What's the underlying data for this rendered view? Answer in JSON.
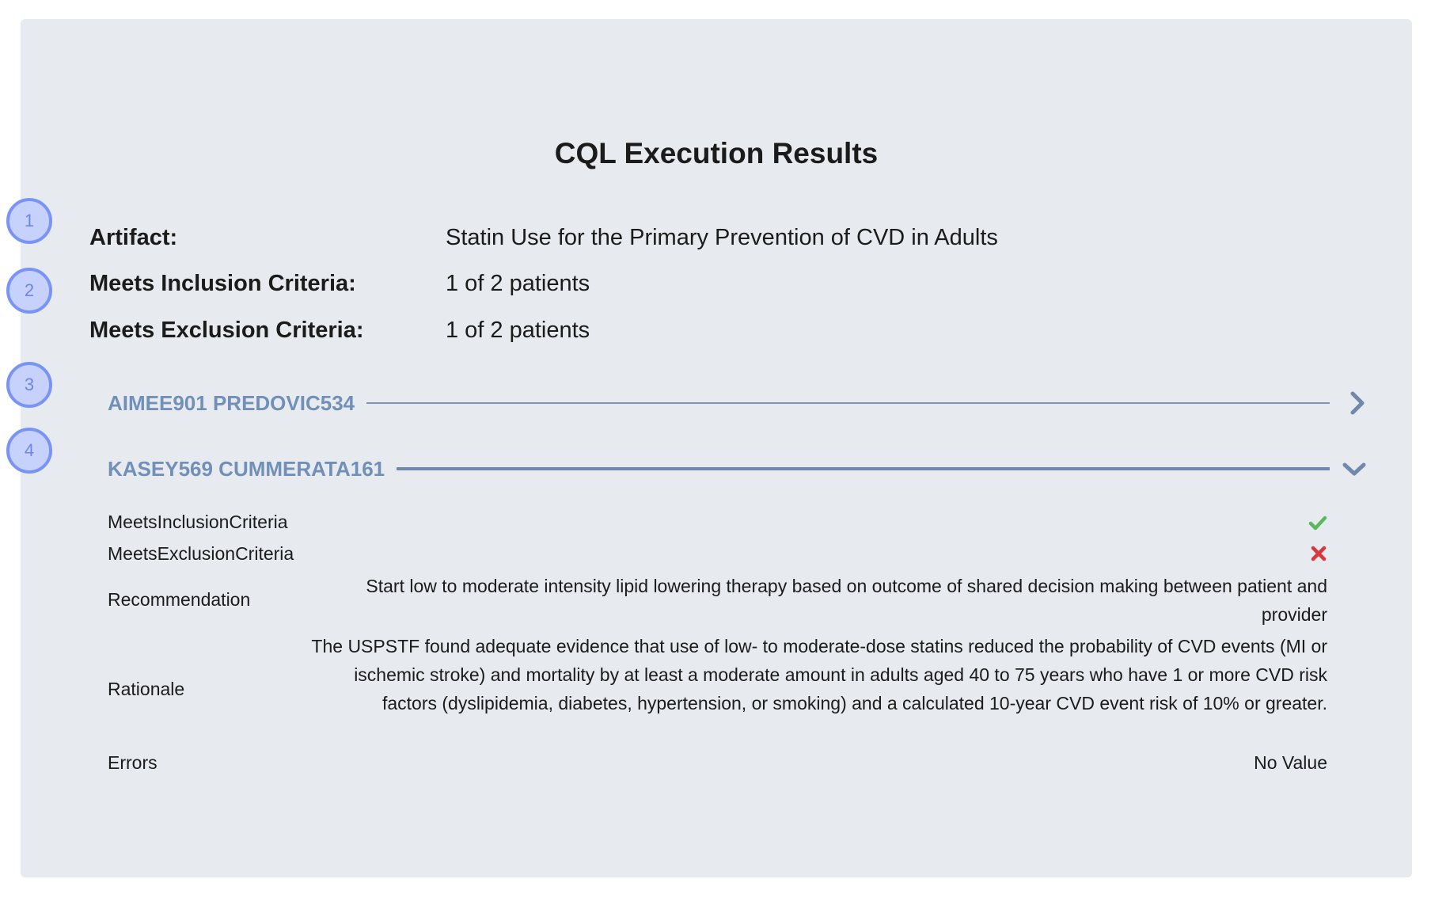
{
  "title": "CQL Execution Results",
  "summary": {
    "artifact_label": "Artifact:",
    "artifact_value": "Statin Use for the Primary Prevention of CVD in Adults",
    "inclusion_label": "Meets Inclusion Criteria:",
    "inclusion_value": "1 of 2 patients",
    "exclusion_label": "Meets Exclusion Criteria:",
    "exclusion_value": "1 of 2 patients"
  },
  "markers": [
    "1",
    "2",
    "3",
    "4"
  ],
  "patients": [
    {
      "name": "AIMEE901 PREDOVIC534",
      "expanded": false,
      "icon": "chevron-right-icon"
    },
    {
      "name": "KASEY569 CUMMERATA161",
      "expanded": true,
      "icon": "chevron-down-icon"
    }
  ],
  "details": {
    "inclusion_label": "MeetsInclusionCriteria",
    "inclusion_icon": "check-icon",
    "exclusion_label": "MeetsExclusionCriteria",
    "exclusion_icon": "cross-icon",
    "recommendation_label": "Recommendation",
    "recommendation_value": "Start low to moderate intensity lipid lowering therapy based on outcome of shared decision making between patient and provider",
    "rationale_label": "Rationale",
    "rationale_value": "The USPSTF found adequate evidence that use of low- to moderate-dose statins reduced the probability of CVD events (MI or ischemic stroke) and mortality by at least a moderate amount in adults aged 40 to 75 years who have 1 or more CVD risk factors (dyslipidemia, diabetes, hypertension, or smoking) and a calculated 10-year CVD event risk of 10% or greater.",
    "errors_label": "Errors",
    "errors_value": "No Value"
  },
  "colors": {
    "panel_bg": "#e7eaee",
    "patient_name": "#7190b9",
    "marker_border": "#7a94f5",
    "marker_fill": "#c6d2fb",
    "check": "#5cb85c",
    "cross": "#d9363e"
  }
}
